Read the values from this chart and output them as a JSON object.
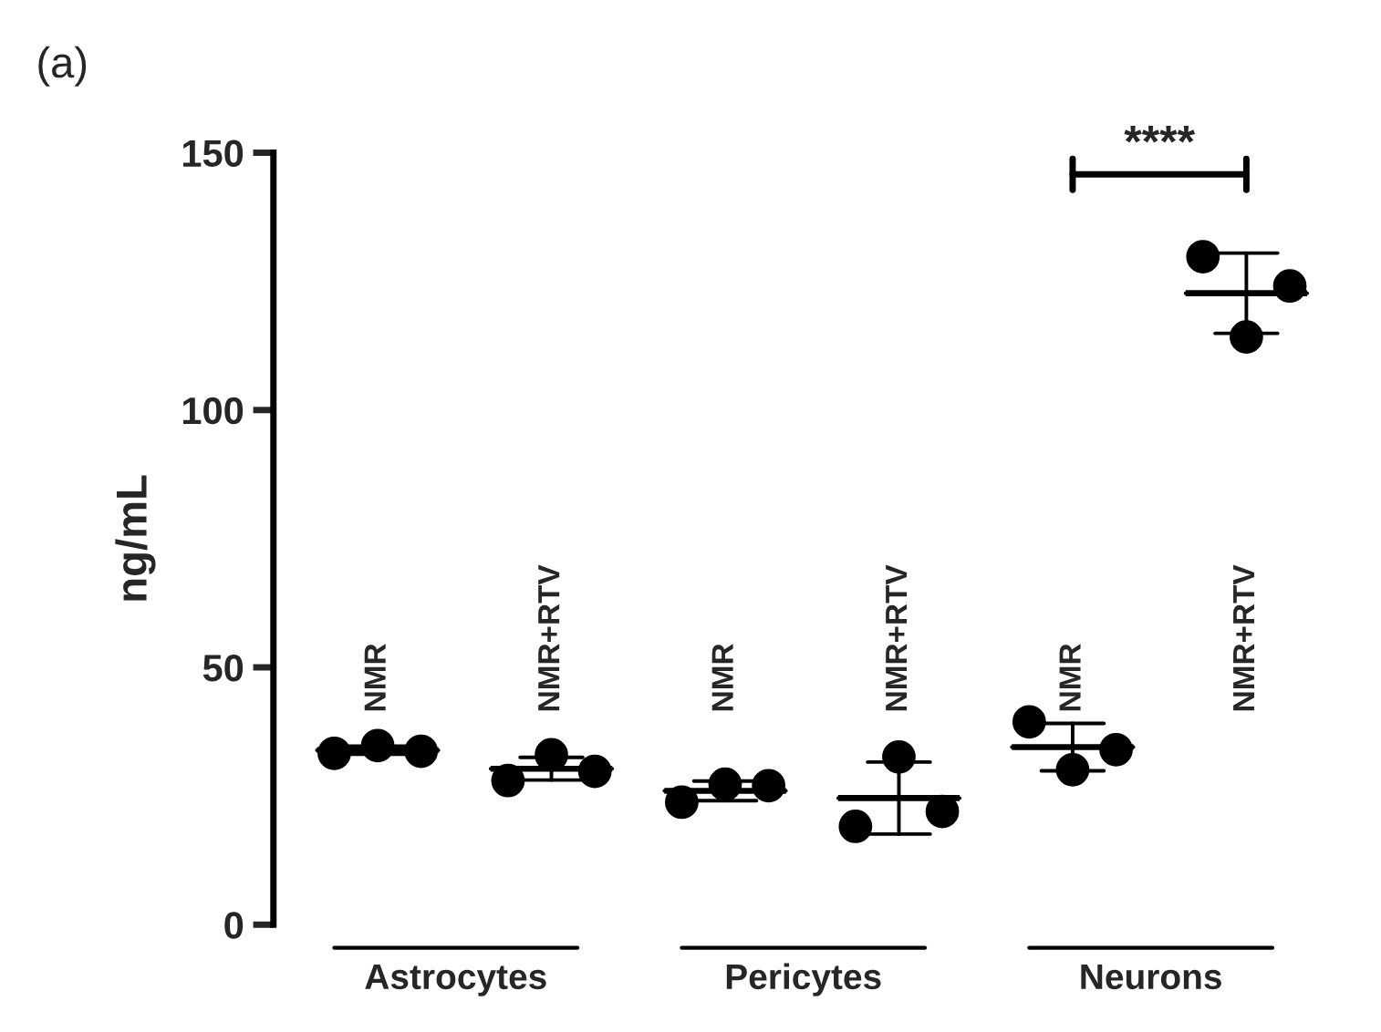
{
  "chart_data": {
    "type": "scatter",
    "title": "(a)",
    "ylabel": "ng/mL",
    "categories": [
      "NMR",
      "NMR+RTV",
      "NMR",
      "NMR+RTV",
      "NMR",
      "NMR+RTV"
    ],
    "ylim": [
      0,
      150
    ],
    "yticks": [
      0,
      50,
      100,
      150
    ],
    "tick_labels": "y",
    "grid": false,
    "marker": "circle",
    "series": [
      {
        "color": "#000000",
        "values": [
          33.3,
          28.0,
          23.8,
          19.1,
          39.4,
          129.8
        ]
      },
      {
        "color": "#000000",
        "values": [
          34.8,
          33.0,
          27.3,
          32.6,
          30.1,
          114.2
        ]
      },
      {
        "color": "#000000",
        "values": [
          33.7,
          29.8,
          27.0,
          22.0,
          34.0,
          124.1
        ]
      },
      {
        "type": "box",
        "color": "#000000",
        "boxes": [
          {
            "low": 33.1,
            "q1": 33.9,
            "median": 33.9,
            "q3": 33.9,
            "high": 34.7
          },
          {
            "low": 28.1,
            "q1": 30.3,
            "median": 30.3,
            "q3": 30.3,
            "high": 32.5
          },
          {
            "low": 24.1,
            "q1": 26.0,
            "median": 26.0,
            "q3": 26.0,
            "high": 27.9
          },
          {
            "low": 17.6,
            "q1": 24.6,
            "median": 24.6,
            "q3": 24.6,
            "high": 31.6
          },
          {
            "low": 29.9,
            "q1": 34.5,
            "median": 34.5,
            "q3": 34.5,
            "high": 39.1
          },
          {
            "low": 114.9,
            "q1": 122.7,
            "median": 122.7,
            "q3": 122.7,
            "high": 130.5
          }
        ]
      }
    ],
    "annotations": [
      "****",
      "Astrocytes",
      "Pericytes",
      "Neurons"
    ]
  }
}
